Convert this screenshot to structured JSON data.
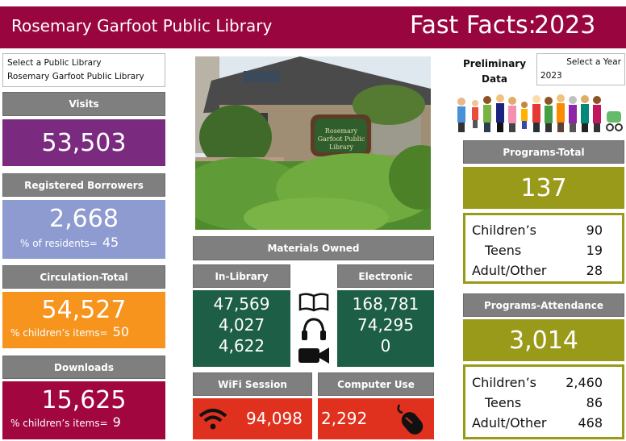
{
  "header": {
    "title": "Rosemary Garfoot Public Library",
    "fast_facts": "Fast Facts:",
    "year": "2023"
  },
  "library_filter": {
    "label": "Select a Public Library",
    "value": "Rosemary Garfoot Public Library"
  },
  "year_filter": {
    "label": "Select a Year",
    "value": "2023"
  },
  "preliminary_note": "Preliminary Data",
  "visits": {
    "title": "Visits",
    "value": "53,503"
  },
  "registered_borrowers": {
    "title": "Registered Borrowers",
    "value": "2,668",
    "sub_label": "% of residents=",
    "sub_value": "45"
  },
  "circulation": {
    "title": "Circulation-Total",
    "value": "54,527",
    "sub_label": "% children’s items=",
    "sub_value": "50"
  },
  "downloads": {
    "title": "Downloads",
    "value": "15,625",
    "sub_label": "% children’s items=",
    "sub_value": "9"
  },
  "photo": {
    "sign": "Rosemary Garfoot Public Library"
  },
  "materials": {
    "title": "Materials Owned",
    "in_library": {
      "title": "In-Library",
      "values": [
        "47,569",
        "4,027",
        "4,622"
      ]
    },
    "electronic": {
      "title": "Electronic",
      "values": [
        "168,781",
        "74,295",
        "0"
      ]
    }
  },
  "wifi": {
    "title": "WiFi Session",
    "value": "94,098"
  },
  "computer_use": {
    "title": "Computer Use",
    "value": "2,292"
  },
  "programs_total": {
    "title": "Programs-Total",
    "value": "137",
    "breakdown": [
      {
        "label": "Children’s",
        "value": "90"
      },
      {
        "label": "Teens",
        "value": "19"
      },
      {
        "label": "Adult/Other",
        "value": "28"
      }
    ]
  },
  "programs_attendance": {
    "title": "Programs-Attendance",
    "value": "3,014",
    "breakdown": [
      {
        "label": "Children’s",
        "value": "2,460"
      },
      {
        "label": "Teens",
        "value": "86"
      },
      {
        "label": "Adult/Other",
        "value": "468"
      }
    ]
  }
}
